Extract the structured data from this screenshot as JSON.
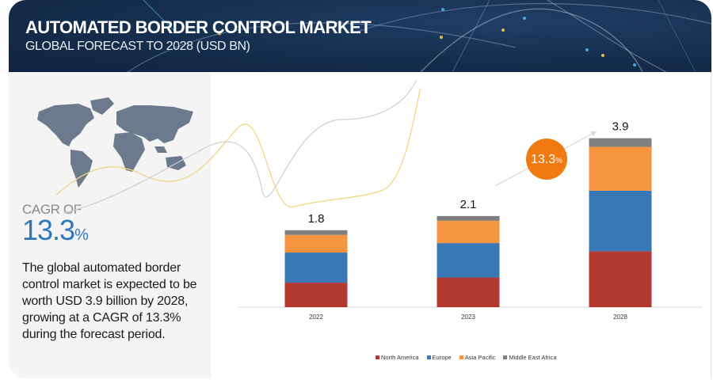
{
  "header": {
    "title": "AUTOMATED BORDER CONTROL MARKET",
    "subtitle": "GLOBAL FORECAST TO 2028 (USD BN)"
  },
  "left_panel": {
    "map_icon": "world-map-icon",
    "cagr_label": "CAGR OF",
    "cagr_value": "13.3",
    "cagr_unit": "%",
    "description": "The global automated border control market is expected to be worth USD 3.9 billion by 2028, growing at a CAGR of 13.3% during the forecast period."
  },
  "chart_data": {
    "type": "bar",
    "stacked": true,
    "title": "",
    "xlabel": "",
    "ylabel": "",
    "categories": [
      "2022",
      "2023",
      "2028"
    ],
    "totals": [
      "1.8",
      "2.1",
      "3.9"
    ],
    "series": [
      {
        "name": "North America",
        "color": "#b33a32",
        "values": [
          0.57,
          0.69,
          1.3
        ]
      },
      {
        "name": "Europe",
        "color": "#3a78b5",
        "values": [
          0.7,
          0.8,
          1.41
        ]
      },
      {
        "name": "Asia Pacific",
        "color": "#f7953f",
        "values": [
          0.41,
          0.52,
          1.02
        ]
      },
      {
        "name": "Middle East Africa",
        "color": "#808080",
        "values": [
          0.11,
          0.11,
          0.2
        ]
      }
    ],
    "ylim": [
      0,
      4.2
    ],
    "grid": false,
    "legend_position": "bottom",
    "annotation": {
      "value": "13.3",
      "unit": "%",
      "color": "#f07a10"
    }
  }
}
